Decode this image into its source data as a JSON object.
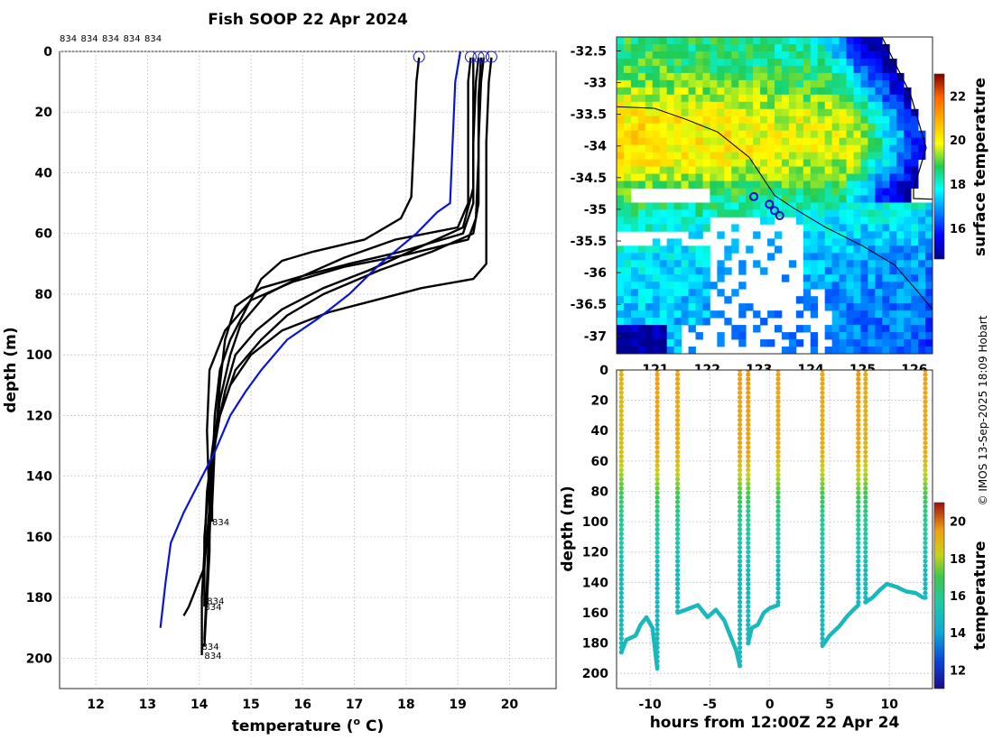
{
  "title": "Fish SOOP 22 Apr 2024",
  "credit": "© IMOS 13-Sep-2025 18:09 Hobart",
  "colors": {
    "profile": "#000000",
    "mean_profile": "#0a14d8",
    "marker": "#1010d0"
  },
  "chart_data": [
    {
      "type": "line",
      "name": "temperature-depth profiles",
      "xlabel": "temperature (o C)",
      "ylabel": "depth (m)",
      "xlim": [
        11.3,
        20.9
      ],
      "ylim": [
        210,
        0
      ],
      "xticks": [
        12,
        13,
        14,
        15,
        16,
        17,
        18,
        19,
        20
      ],
      "yticks": [
        0,
        20,
        40,
        60,
        80,
        100,
        120,
        140,
        160,
        180,
        200
      ],
      "grid": true,
      "top_labels": [
        "834",
        "834",
        "834",
        "834",
        "834"
      ],
      "end_labels": [
        {
          "text": "834",
          "t": 14.25,
          "d": 155
        },
        {
          "text": "834",
          "t": 14.15,
          "d": 181
        },
        {
          "text": "834",
          "t": 14.1,
          "d": 183
        },
        {
          "text": "834",
          "t": 14.05,
          "d": 196
        },
        {
          "text": "834",
          "t": 14.1,
          "d": 199
        }
      ],
      "surface_markers": [
        18.25,
        19.25,
        19.4,
        19.5,
        19.65
      ],
      "series": [
        {
          "name": "834-1",
          "points": [
            [
              18.25,
              2
            ],
            [
              18.2,
              10
            ],
            [
              18.15,
              30
            ],
            [
              18.1,
              48
            ],
            [
              17.9,
              55
            ],
            [
              17.2,
              62
            ],
            [
              16.2,
              66
            ],
            [
              15.6,
              69
            ],
            [
              15.2,
              75
            ],
            [
              14.9,
              85
            ],
            [
              14.6,
              95
            ],
            [
              14.4,
              105
            ],
            [
              14.3,
              120
            ],
            [
              14.25,
              140
            ],
            [
              14.2,
              160
            ],
            [
              14.15,
              180
            ],
            [
              14.1,
              196
            ]
          ]
        },
        {
          "name": "834-2",
          "points": [
            [
              19.25,
              2
            ],
            [
              19.2,
              10
            ],
            [
              19.2,
              30
            ],
            [
              19.2,
              50
            ],
            [
              19.0,
              58
            ],
            [
              17.8,
              62
            ],
            [
              16.8,
              68
            ],
            [
              16.0,
              74
            ],
            [
              15.3,
              80
            ],
            [
              14.8,
              90
            ],
            [
              14.6,
              100
            ],
            [
              14.4,
              115
            ],
            [
              14.3,
              130
            ],
            [
              14.25,
              150
            ],
            [
              14.25,
              155
            ]
          ]
        },
        {
          "name": "834-3",
          "points": [
            [
              19.4,
              2
            ],
            [
              19.35,
              10
            ],
            [
              19.3,
              30
            ],
            [
              19.3,
              45
            ],
            [
              19.1,
              58
            ],
            [
              18.2,
              65
            ],
            [
              17.3,
              72
            ],
            [
              16.4,
              78
            ],
            [
              15.6,
              85
            ],
            [
              15.1,
              92
            ],
            [
              14.7,
              100
            ],
            [
              14.5,
              112
            ],
            [
              14.3,
              128
            ],
            [
              14.2,
              145
            ],
            [
              14.2,
              165
            ],
            [
              14.15,
              181
            ]
          ]
        },
        {
          "name": "834-4",
          "points": [
            [
              19.5,
              2
            ],
            [
              19.45,
              10
            ],
            [
              19.4,
              30
            ],
            [
              19.4,
              50
            ],
            [
              19.3,
              60
            ],
            [
              18.5,
              66
            ],
            [
              17.5,
              72
            ],
            [
              16.4,
              80
            ],
            [
              15.7,
              87
            ],
            [
              15.2,
              95
            ],
            [
              14.7,
              105
            ],
            [
              14.4,
              120
            ],
            [
              14.2,
              140
            ],
            [
              14.1,
              160
            ],
            [
              14.1,
              175
            ],
            [
              14.1,
              183
            ]
          ]
        },
        {
          "name": "834-5",
          "points": [
            [
              19.65,
              2
            ],
            [
              19.6,
              10
            ],
            [
              19.55,
              30
            ],
            [
              19.55,
              50
            ],
            [
              19.55,
              70
            ],
            [
              19.3,
              75
            ],
            [
              18.3,
              78
            ],
            [
              17.4,
              82
            ],
            [
              16.5,
              86
            ],
            [
              15.6,
              92
            ],
            [
              15.0,
              100
            ],
            [
              14.6,
              110
            ],
            [
              14.3,
              125
            ],
            [
              14.15,
              145
            ],
            [
              14.1,
              165
            ],
            [
              14.05,
              180
            ],
            [
              14.05,
              199
            ]
          ]
        },
        {
          "name": "834-6",
          "points": [
            [
              19.3,
              2
            ],
            [
              19.3,
              10
            ],
            [
              19.3,
              30
            ],
            [
              19.3,
              50
            ],
            [
              19.1,
              60
            ],
            [
              17.9,
              66
            ],
            [
              16.9,
              70
            ],
            [
              16.0,
              74
            ],
            [
              15.2,
              78
            ],
            [
              14.7,
              84
            ],
            [
              14.5,
              95
            ],
            [
              14.4,
              110
            ],
            [
              14.3,
              130
            ],
            [
              14.2,
              150
            ],
            [
              14.1,
              170
            ],
            [
              13.8,
              183
            ],
            [
              13.7,
              186
            ]
          ]
        },
        {
          "name": "834-7",
          "points": [
            [
              19.45,
              2
            ],
            [
              19.4,
              15
            ],
            [
              19.4,
              35
            ],
            [
              19.35,
              55
            ],
            [
              19.2,
              62
            ],
            [
              18.0,
              67
            ],
            [
              16.8,
              71
            ],
            [
              15.8,
              76
            ],
            [
              15.0,
              82
            ],
            [
              14.5,
              92
            ],
            [
              14.2,
              105
            ],
            [
              14.15,
              125
            ],
            [
              14.2,
              150
            ],
            [
              14.15,
              175
            ],
            [
              14.1,
              194
            ]
          ]
        }
      ],
      "mean_profile": [
        [
          19.05,
          0
        ],
        [
          18.95,
          10
        ],
        [
          18.9,
          30
        ],
        [
          18.85,
          50
        ],
        [
          18.6,
          53
        ],
        [
          18.2,
          60
        ],
        [
          17.5,
          70
        ],
        [
          16.9,
          80
        ],
        [
          16.3,
          88
        ],
        [
          15.7,
          95
        ],
        [
          15.2,
          105
        ],
        [
          14.9,
          112
        ],
        [
          14.6,
          120
        ],
        [
          14.3,
          132
        ],
        [
          14.0,
          142
        ],
        [
          13.7,
          152
        ],
        [
          13.45,
          162
        ],
        [
          13.35,
          175
        ],
        [
          13.25,
          190
        ]
      ]
    },
    {
      "type": "heatmap",
      "name": "surface temperature map",
      "colorbar_label": "surface temperature",
      "clim": [
        14.6,
        23.0
      ],
      "colorbar_ticks": [
        16,
        18,
        20,
        22
      ],
      "x_tick_labels": [
        "121",
        "122",
        "123",
        "124",
        "125",
        "126"
      ],
      "y_tick_labels": [
        "-32.5",
        "-33",
        "-33.5",
        "-34",
        "-34.5",
        "-35",
        "-35.5",
        "-36",
        "-36.5",
        "-37"
      ],
      "track_markers": [
        [
          122.9,
          -34.8
        ],
        [
          123.2,
          -34.92
        ],
        [
          123.3,
          -35.02
        ],
        [
          123.4,
          -35.1
        ]
      ]
    },
    {
      "type": "scatter",
      "name": "depth-time temperature section",
      "xlabel": "hours from 12:00Z 22 Apr 24",
      "ylabel": "depth (m)",
      "colorbar_label": "temperature",
      "clim": [
        11,
        21
      ],
      "colorbar_ticks": [
        12,
        14,
        16,
        18,
        20
      ],
      "xticks": [
        -10,
        -5,
        0,
        5,
        10
      ],
      "yticks": [
        0,
        20,
        40,
        60,
        80,
        100,
        120,
        140,
        160,
        180,
        200
      ],
      "xlim": [
        -12.8,
        13.6
      ],
      "ylim": [
        210,
        0
      ],
      "casts": [
        {
          "h": -12.4,
          "bottom": 186,
          "surf_t": 19.0
        },
        {
          "h": -9.4,
          "bottom": 197,
          "surf_t": 19.5
        },
        {
          "h": -7.7,
          "bottom": 160,
          "surf_t": 19.4
        },
        {
          "h": -2.5,
          "bottom": 195,
          "surf_t": 19.5
        },
        {
          "h": -1.8,
          "bottom": 180,
          "surf_t": 19.6
        },
        {
          "h": 0.7,
          "bottom": 155,
          "surf_t": 19.4
        },
        {
          "h": 4.4,
          "bottom": 182,
          "surf_t": 19.3
        },
        {
          "h": 7.4,
          "bottom": 155,
          "surf_t": 19.6
        },
        {
          "h": 8.0,
          "bottom": 153,
          "surf_t": 19.2
        },
        {
          "h": 13.0,
          "bottom": 150,
          "surf_t": 19.4
        }
      ],
      "bottom_tracks": [
        [
          [
            -12.4,
            186
          ],
          [
            -12.0,
            178
          ],
          [
            -11.2,
            175
          ],
          [
            -10.8,
            168
          ],
          [
            -10.3,
            163
          ],
          [
            -9.8,
            170
          ],
          [
            -9.4,
            197
          ]
        ],
        [
          [
            -7.7,
            160
          ],
          [
            -7.0,
            158
          ],
          [
            -6.0,
            155
          ],
          [
            -5.2,
            163
          ],
          [
            -4.5,
            158
          ],
          [
            -3.8,
            165
          ],
          [
            -3.3,
            175
          ],
          [
            -2.8,
            185
          ],
          [
            -2.5,
            195
          ]
        ],
        [
          [
            -1.8,
            180
          ],
          [
            -1.5,
            170
          ],
          [
            -1.0,
            168
          ],
          [
            -0.5,
            160
          ],
          [
            0.0,
            157
          ],
          [
            0.7,
            155
          ]
        ],
        [
          [
            4.4,
            182
          ],
          [
            5.0,
            175
          ],
          [
            5.8,
            169
          ],
          [
            6.5,
            162
          ],
          [
            7.0,
            158
          ],
          [
            7.4,
            155
          ]
        ],
        [
          [
            8.0,
            153
          ],
          [
            8.6,
            150
          ],
          [
            9.2,
            145
          ],
          [
            9.8,
            141
          ],
          [
            10.6,
            143
          ],
          [
            11.4,
            146
          ],
          [
            12.2,
            147
          ],
          [
            12.8,
            150
          ],
          [
            13.0,
            150
          ]
        ]
      ]
    }
  ]
}
